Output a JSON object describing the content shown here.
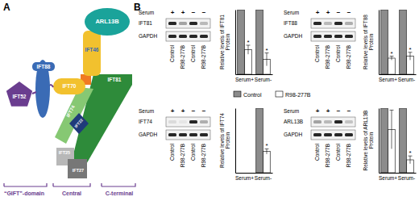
{
  "panel_labels": [
    "A",
    "B"
  ],
  "diagram": {
    "proteins": [
      "IFT52",
      "IFT88",
      "IFT70",
      "ARL13B",
      "IFT46",
      "IFT81",
      "IFT74",
      "IFT22",
      "IFT25",
      "IFT27"
    ],
    "domains": [
      "“GIFT”-domain",
      "Central",
      "C-terminal"
    ]
  },
  "blots": [
    {
      "serum_label": "Serum",
      "serum": [
        "+",
        "+",
        "−",
        "−"
      ],
      "lanes": [
        "Control",
        "R98-277B",
        "Control",
        "R98-277B"
      ],
      "rows": [
        {
          "label": "IFT81",
          "bands": [
            0.9,
            0.35,
            0.9,
            0.25
          ]
        },
        {
          "label": "GAPDH",
          "bands": [
            0.9,
            0.9,
            0.9,
            0.9
          ]
        }
      ]
    },
    {
      "serum_label": "Serum",
      "serum": [
        "+",
        "+",
        "−",
        "−"
      ],
      "lanes": [
        "Control",
        "R98-277B",
        "Control",
        "R98-277B"
      ],
      "rows": [
        {
          "label": "IFT88",
          "bands": [
            0.9,
            0.25,
            0.9,
            0.3
          ]
        },
        {
          "label": "GAPDH",
          "bands": [
            0.9,
            0.9,
            0.9,
            0.9
          ]
        }
      ]
    },
    {
      "serum_label": "Serum",
      "serum": [
        "+",
        "+",
        "−",
        "−"
      ],
      "lanes": [
        "Control",
        "R98-277B",
        "Control",
        "R98-277B"
      ],
      "rows": [
        {
          "label": "IFT74",
          "bands": [
            0.1,
            0.05,
            0.9,
            0.3
          ]
        },
        {
          "label": "GAPDH",
          "bands": [
            0.9,
            0.9,
            0.9,
            0.9
          ]
        }
      ]
    },
    {
      "serum_label": "Serum",
      "serum": [
        "+",
        "+",
        "−",
        "−"
      ],
      "lanes": [
        "Control",
        "R98-277B",
        "Control",
        "R98-277B"
      ],
      "rows": [
        {
          "label": "ARL13B",
          "bands": [
            0.35,
            0.25,
            0.9,
            0.2
          ]
        },
        {
          "label": "GAPDH",
          "bands": [
            0.9,
            0.9,
            0.9,
            0.9
          ]
        }
      ]
    }
  ],
  "chart_data": [
    {
      "type": "bar",
      "y_label": "Relative levels of IFT81 Protein",
      "categories": [
        "Serum+",
        "Serum-"
      ],
      "ylim": [
        0,
        1
      ],
      "tick_labels": "x",
      "legend": "bottom",
      "series": [
        {
          "name": "Control",
          "color": "#8c8c8c",
          "values": [
            1,
            1
          ],
          "errors": [
            null,
            null
          ]
        },
        {
          "name": "R98-277B",
          "color": "#ffffff",
          "values": [
            0.38,
            0.23
          ],
          "errors": [
            0.07,
            0.1
          ],
          "annotations": [
            "*",
            "*"
          ]
        }
      ]
    },
    {
      "type": "bar",
      "y_label": "Relative levels of IFT88 Protein",
      "categories": [
        "Serum+",
        "Serum-"
      ],
      "ylim": [
        0,
        1
      ],
      "tick_labels": "x",
      "series": [
        {
          "name": "Control",
          "color": "#8c8c8c",
          "values": [
            1,
            1
          ],
          "errors": [
            null,
            null
          ]
        },
        {
          "name": "R98-277B",
          "color": "#ffffff",
          "values": [
            0.25,
            0.28
          ],
          "errors": [
            0.03,
            0.06
          ],
          "annotations": [
            "*",
            "*"
          ]
        }
      ]
    },
    {
      "type": "bar",
      "y_label": "Relative levels of IFT74 Protein",
      "categories": [
        "Serum+",
        "Serum-"
      ],
      "ylim": [
        0,
        1
      ],
      "tick_labels": "x",
      "series": [
        {
          "name": "Control",
          "color": "#8c8c8c",
          "values": [
            null,
            1
          ],
          "errors": [
            null,
            null
          ]
        },
        {
          "name": "R98-277B",
          "color": "#ffffff",
          "values": [
            null,
            0.33
          ],
          "errors": [
            null,
            0.04
          ],
          "annotations": [
            null,
            "*"
          ]
        }
      ]
    },
    {
      "type": "bar",
      "y_label": "Relative levels of ARL13B Protein",
      "categories": [
        "Serum+",
        "Serum-"
      ],
      "ylim": [
        0,
        1
      ],
      "tick_labels": "x",
      "series": [
        {
          "name": "Control",
          "color": "#8c8c8c",
          "values": [
            1,
            1
          ],
          "errors": [
            null,
            null
          ]
        },
        {
          "name": "R98-277B",
          "color": "#ffffff",
          "values": [
            0.67,
            0.2
          ],
          "errors": [
            0.3,
            0.06
          ],
          "annotations": [
            null,
            "*"
          ]
        }
      ]
    }
  ]
}
